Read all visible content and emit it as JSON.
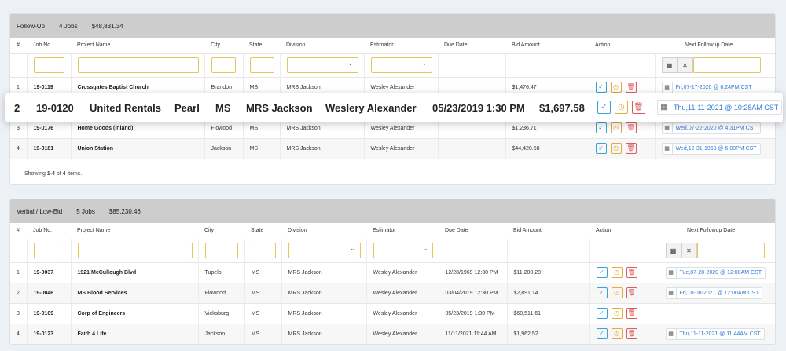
{
  "panel1": {
    "title": "Follow-Up",
    "jobs": "4 Jobs",
    "amount": "$48,831.34",
    "headers": [
      "#",
      "Job No.",
      "Project Name",
      "City",
      "State",
      "Division",
      "Estimator",
      "Due Date",
      "Bid Amount",
      "Action",
      "Next Followup Date"
    ],
    "rows": [
      {
        "n": "1",
        "job": "19-0119",
        "name": "Crossgates Baptist Church",
        "city": "Brandon",
        "state": "MS",
        "div": "MRS Jackson",
        "est": "Wesley Alexander",
        "due": "",
        "bid": "$1,476.47",
        "next": "Fri,07-17-2020 @ 6:24PM CST"
      },
      {
        "n": "3",
        "job": "19-0176",
        "name": "Home Goods (Inland)",
        "city": "Flowood",
        "state": "MS",
        "div": "MRS Jackson",
        "est": "Wesley Alexander",
        "due": "",
        "bid": "$1,236.71",
        "next": "Wed,07-22-2020 @ 4:31PM CST"
      },
      {
        "n": "4",
        "job": "19-0181",
        "name": "Union Station",
        "city": "Jackson",
        "state": "MS",
        "div": "MRS Jackson",
        "est": "Wesley Alexander",
        "due": "",
        "bid": "$44,420.58",
        "next": "Wed,12-31-1969 @ 6:00PM CST"
      }
    ],
    "footer_pre": "Showing ",
    "footer_range": "1-4",
    "footer_of": " of ",
    "footer_total": "4",
    "footer_post": " items."
  },
  "float_row": {
    "n": "2",
    "job": "19-0120",
    "name": "United Rentals",
    "city": "Pearl",
    "state": "MS",
    "div": "MRS Jackson",
    "est": "Weslery Alexander",
    "due": "05/23/2019 1:30 PM",
    "bid": "$1,697.58",
    "next": "Thu,11-11-2021 @ 10:28AM CST"
  },
  "panel2": {
    "title": "Verbal / Low-Bid",
    "jobs": "5 Jobs",
    "amount": "$85,230.46",
    "headers": [
      "#",
      "Job No.",
      "Project Name",
      "City",
      "State",
      "Division",
      "Estimator",
      "Due Date",
      "Bid Amount",
      "Action",
      "Next Followup Date"
    ],
    "rows": [
      {
        "n": "1",
        "job": "19-0037",
        "name": "1921 McCullough Blvd",
        "city": "Tupelo",
        "state": "MS",
        "div": "MRS Jackson",
        "est": "Wesley Alexander",
        "due": "12/28/1969 12:30 PM",
        "bid": "$11,200.28",
        "next": "Tue,07-28-2020 @ 12:00AM CST"
      },
      {
        "n": "2",
        "job": "19-0046",
        "name": "MS Blood Services",
        "city": "Flowood",
        "state": "MS",
        "div": "MRS Jackson",
        "est": "Wesley Alexander",
        "due": "03/04/2019 12:30 PM",
        "bid": "$2,891.14",
        "next": "Fri,10-08-2021 @ 12:00AM CST"
      },
      {
        "n": "3",
        "job": "19-0109",
        "name": "Corp of Engineers",
        "city": "Vicksburg",
        "state": "MS",
        "div": "MRS Jackson",
        "est": "Wesley Alexander",
        "due": "05/23/2019 1:30 PM",
        "bid": "$68,511.61",
        "next": ""
      },
      {
        "n": "4",
        "job": "19-0123",
        "name": "Faith 4 Life",
        "city": "Jackson",
        "state": "MS",
        "div": "MRS Jackson",
        "est": "Wesley Alexander",
        "due": "11/11/2021 11:44 AM",
        "bid": "$1,962.52",
        "next": "Thu,11-11-2021 @ 11:44AM CST"
      }
    ]
  },
  "icons": {
    "approve": "check-square-icon",
    "clock": "clock-icon",
    "delete": "trash-icon",
    "calendar": "calendar-icon",
    "clear": "close-icon"
  },
  "colors": {
    "header_bg": "#cdcdcd",
    "input_border": "#e2c75c",
    "approve": "#36a3d9",
    "clock": "#e5a93d",
    "delete": "#e05c5c",
    "date_link": "#2e7bd6"
  }
}
